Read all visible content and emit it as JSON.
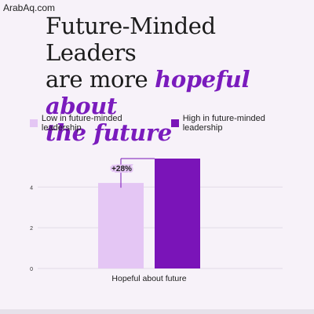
{
  "watermark": "ArabAq.com",
  "headline": {
    "line1": "Future-Minded Leaders",
    "line2_plain": "are more ",
    "line2_highlight": "hopeful about",
    "line3_highlight": "the future"
  },
  "colors": {
    "low": "#e4c6f4",
    "high": "#7a14b8",
    "accent": "#7a1bbd",
    "annotation": "#7a14b8"
  },
  "chart_data": {
    "type": "bar",
    "categories": [
      "Hopeful about future"
    ],
    "series": [
      {
        "name": "Low in future-minded leadership",
        "values": [
          4.2
        ]
      },
      {
        "name": "High in future-minded leadership",
        "values": [
          5.4
        ]
      }
    ],
    "ylim": [
      0,
      5.6
    ],
    "yticks": [
      0,
      2,
      4
    ],
    "grid": true,
    "legend_position": "top",
    "annotation": "+28%"
  }
}
